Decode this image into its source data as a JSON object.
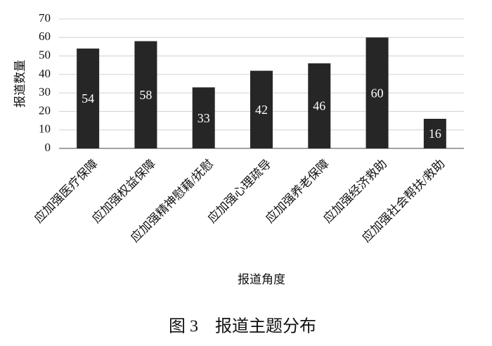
{
  "chart_data": {
    "type": "bar",
    "ylabel": "报道数量",
    "xlabel": "报道角度",
    "caption": "图 3　报道主题分布",
    "categories": [
      "应加强医疗保障",
      "应加强权益保障",
      "应加强精神慰藉/抚慰",
      "应加强心理疏导",
      "应加强养老保障",
      "应加强经济救助",
      "应加强社会帮扶/救助"
    ],
    "values": [
      54,
      58,
      33,
      42,
      46,
      60,
      16
    ],
    "color": "#262626",
    "ylim": [
      0,
      70
    ],
    "yticks": [
      0,
      10,
      20,
      30,
      40,
      50,
      60,
      70
    ],
    "grid": true
  }
}
